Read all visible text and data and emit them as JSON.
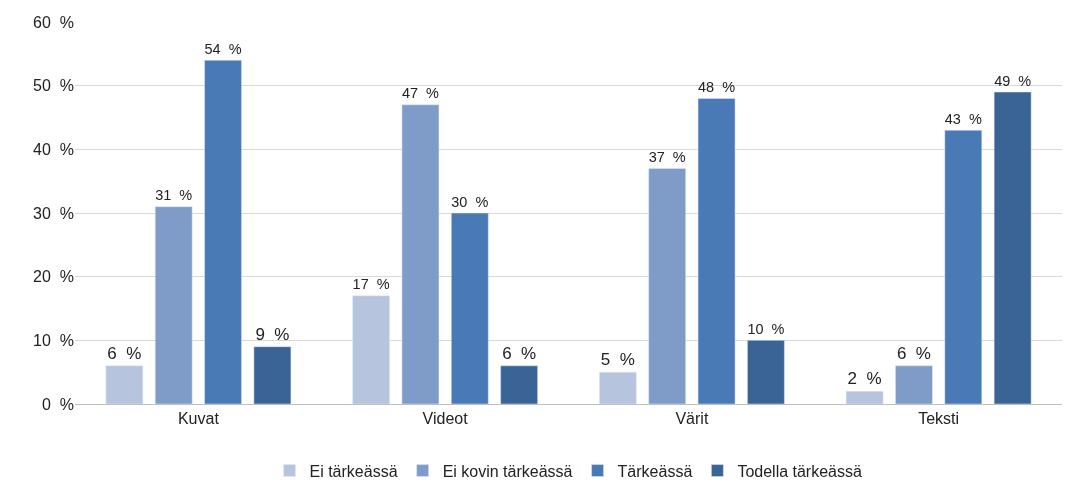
{
  "chart_data": {
    "type": "bar",
    "categories": [
      "Kuvat",
      "Videot",
      "Värit",
      "Teksti"
    ],
    "series": [
      {
        "name": "Ei tärkeässä",
        "color": "#b7c4de",
        "values": [
          6,
          17,
          5,
          2
        ],
        "value_labels": [
          "6  %",
          "17  %",
          "5  %",
          "2  %"
        ]
      },
      {
        "name": "Ei kovin tärkeässä",
        "color": "#7f9cc9",
        "values": [
          31,
          47,
          37,
          6
        ],
        "value_labels": [
          "31  %",
          "47  %",
          "37  %",
          "6  %"
        ]
      },
      {
        "name": "Tärkeässä",
        "color": "#4a7ab5",
        "values": [
          54,
          30,
          48,
          43
        ],
        "value_labels": [
          "54  %",
          "30  %",
          "48  %",
          "43  %"
        ]
      },
      {
        "name": "Todella tärkeässä",
        "color": "#3a6396",
        "values": [
          9,
          6,
          10,
          49
        ],
        "value_labels": [
          "9  %",
          "6  %",
          "10  %",
          "49  %"
        ]
      }
    ],
    "ylim": [
      0,
      60
    ],
    "yticks": [
      {
        "value": 0,
        "label": "0  %"
      },
      {
        "value": 10,
        "label": "10  %"
      },
      {
        "value": 20,
        "label": "20  %"
      },
      {
        "value": 30,
        "label": "30  %"
      },
      {
        "value": 40,
        "label": "40  %"
      },
      {
        "value": 50,
        "label": "50  %"
      },
      {
        "value": 60,
        "label": "60  %"
      }
    ],
    "grid": "y",
    "legend": "bottom"
  }
}
